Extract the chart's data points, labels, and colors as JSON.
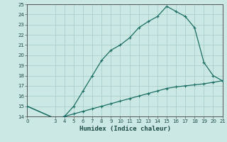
{
  "title": "",
  "xlabel": "Humidex (Indice chaleur)",
  "ylabel": "",
  "bg_color": "#cce8e4",
  "grid_color": "#aacfcb",
  "line_color": "#1a6e64",
  "upper_x": [
    0,
    3,
    4,
    5,
    6,
    7,
    8,
    9,
    10,
    11,
    12,
    13,
    14,
    15,
    16,
    17,
    18,
    19,
    20,
    21
  ],
  "upper_y": [
    15.0,
    13.8,
    14.0,
    15.0,
    16.5,
    18.0,
    19.5,
    20.5,
    21.0,
    21.7,
    22.7,
    23.3,
    23.8,
    24.8,
    24.3,
    23.8,
    22.7,
    19.3,
    18.0,
    17.5
  ],
  "lower_x": [
    0,
    3,
    4,
    5,
    6,
    7,
    8,
    9,
    10,
    11,
    12,
    13,
    14,
    15,
    16,
    17,
    18,
    19,
    20,
    21
  ],
  "lower_y": [
    15.0,
    13.8,
    14.0,
    14.25,
    14.5,
    14.75,
    15.0,
    15.25,
    15.5,
    15.75,
    16.0,
    16.25,
    16.5,
    16.75,
    16.9,
    17.0,
    17.1,
    17.2,
    17.35,
    17.5
  ],
  "xlim": [
    0,
    21
  ],
  "ylim": [
    14,
    25
  ],
  "yticks": [
    14,
    15,
    16,
    17,
    18,
    19,
    20,
    21,
    22,
    23,
    24,
    25
  ],
  "xticks": [
    0,
    3,
    4,
    5,
    6,
    7,
    8,
    9,
    10,
    11,
    12,
    13,
    14,
    15,
    16,
    17,
    18,
    19,
    20,
    21
  ],
  "tick_fontsize": 5.0,
  "label_fontsize": 6.5,
  "marker_size": 2.5,
  "linewidth": 0.9
}
